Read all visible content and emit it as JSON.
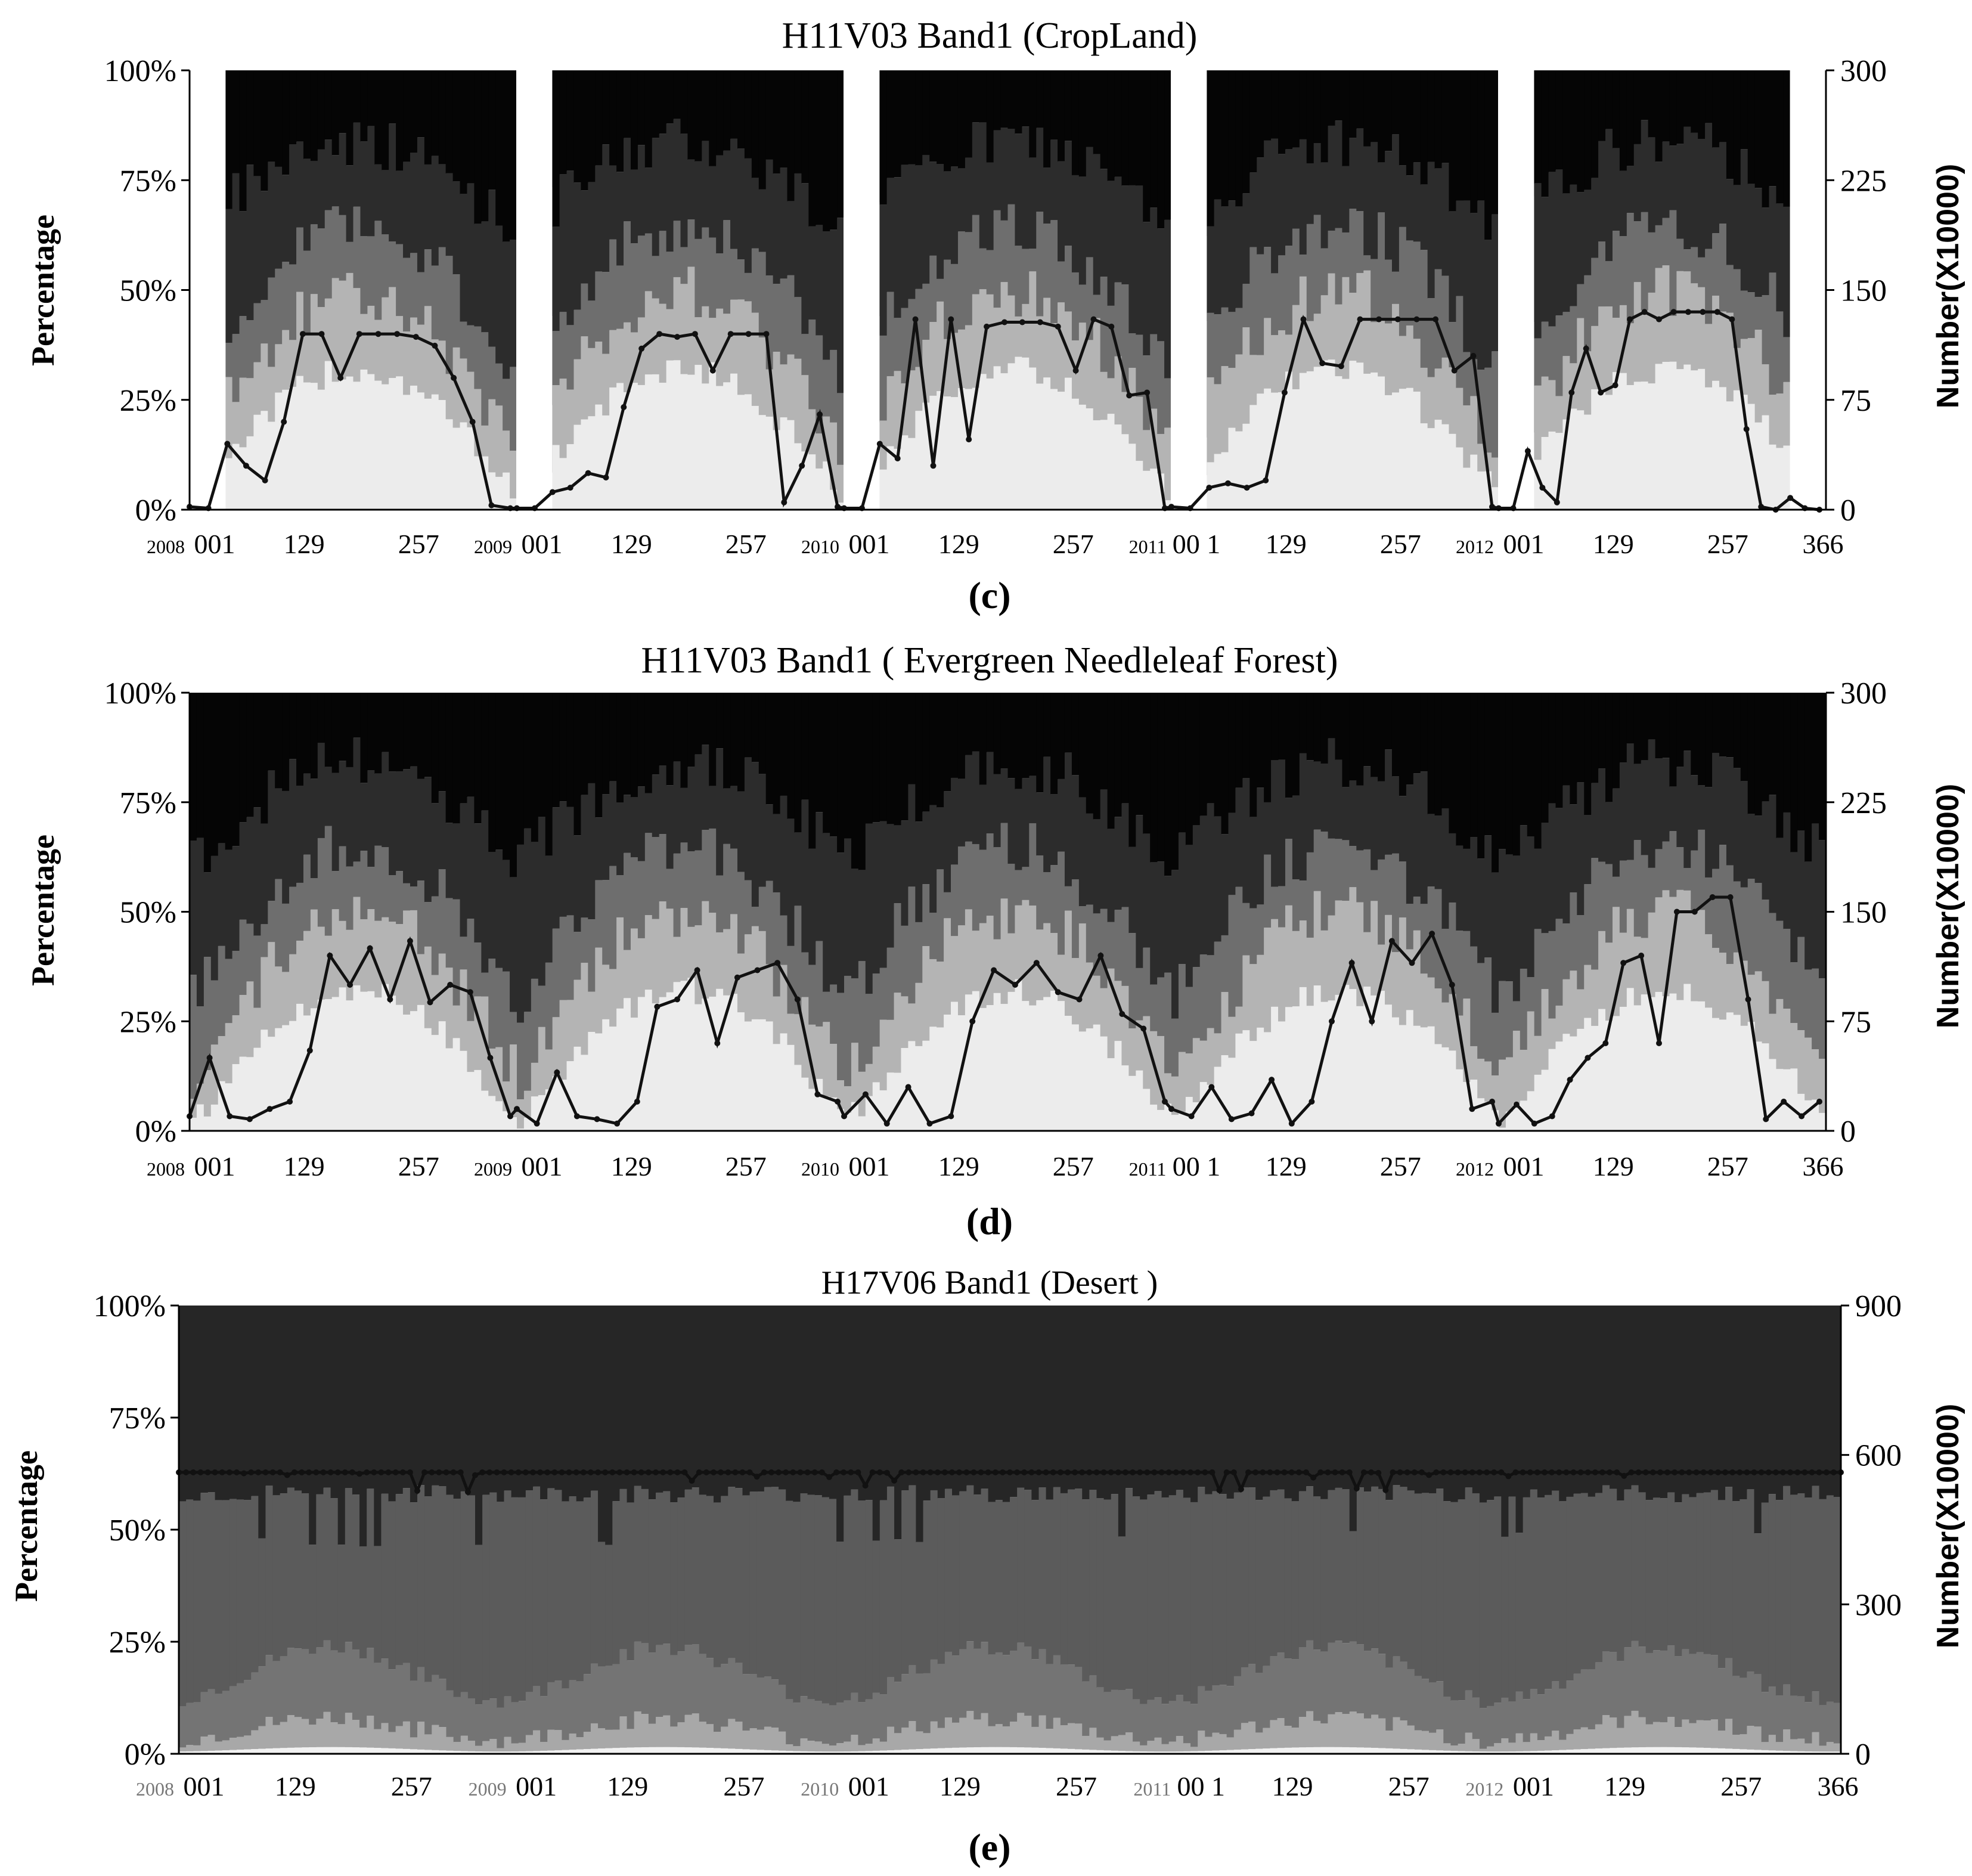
{
  "chart_data": [
    {
      "id": "c",
      "type": "area",
      "title": "H11V03 Band1 (CropLand)",
      "caption": "(c)",
      "ylabel": "Percentage",
      "y2label": "Number(X10000)",
      "yticks": [
        "0%",
        "25%",
        "50%",
        "75%",
        "100%"
      ],
      "y2ticks": [
        "0",
        "75",
        "150",
        "225",
        "300"
      ],
      "ylim": [
        0,
        100
      ],
      "y2lim": [
        0,
        300
      ],
      "years": [
        "2008",
        "2009",
        "2010",
        "2011",
        "2012"
      ],
      "day_ticks": [
        "001",
        "129",
        "257"
      ],
      "year_day_labels": [
        "001",
        "001",
        "001",
        "00 1",
        "001"
      ],
      "end_tick": "366",
      "layers": 5,
      "layer_colors": [
        "#ececec",
        "#b4b4b4",
        "#6e6e6e",
        "#2c2c2c",
        "#050505"
      ],
      "has_gaps": true,
      "series": [
        {
          "kind": "number",
          "x": [
            0,
            16,
            32,
            48,
            64,
            80,
            96,
            112,
            128,
            144,
            160,
            176,
            192,
            208,
            224,
            240,
            256,
            272,
            288,
            304,
            320,
            336,
            352,
            365
          ],
          "values": [
            [
              2,
              1,
              45,
              30,
              20,
              60,
              120,
              120,
              90,
              120,
              120,
              120,
              118,
              112,
              90,
              60,
              3,
              1
            ],
            [
              1,
              1,
              12,
              15,
              25,
              22,
              70,
              110,
              120,
              118,
              120,
              95,
              120,
              120,
              120,
              5,
              30,
              65,
              2
            ],
            [
              1,
              1,
              45,
              35,
              130,
              30,
              130,
              48,
              125,
              128,
              128,
              128,
              125,
              95,
              130,
              125,
              78,
              80,
              1
            ],
            [
              2,
              1,
              15,
              18,
              15,
              20,
              80,
              130,
              100,
              98,
              130,
              130,
              130,
              130,
              130,
              95,
              105,
              2
            ],
            [
              1,
              1,
              40,
              15,
              5,
              80,
              110,
              80,
              85,
              130,
              135,
              130,
              135,
              135,
              135,
              135,
              130,
              55,
              2,
              0,
              8,
              1,
              0
            ]
          ]
        }
      ]
    },
    {
      "id": "d",
      "type": "area",
      "title": "H11V03 Band1 ( Evergreen Needleleaf Forest)",
      "caption": "(d)",
      "ylabel": "Percentage",
      "y2label": "Number(X10000)",
      "yticks": [
        "0%",
        "25%",
        "50%",
        "75%",
        "100%"
      ],
      "y2ticks": [
        "0",
        "75",
        "150",
        "225",
        "300"
      ],
      "ylim": [
        0,
        100
      ],
      "y2lim": [
        0,
        300
      ],
      "years": [
        "2008",
        "2009",
        "2010",
        "2011",
        "2012"
      ],
      "day_ticks": [
        "001",
        "129",
        "257"
      ],
      "year_day_labels": [
        "001",
        "001",
        "001",
        "00 1",
        "001"
      ],
      "end_tick": "366",
      "layers": 5,
      "layer_colors": [
        "#ececec",
        "#b4b4b4",
        "#6e6e6e",
        "#2c2c2c",
        "#050505"
      ],
      "has_gaps": false,
      "series": [
        {
          "kind": "number",
          "values": [
            [
              10,
              50,
              10,
              8,
              15,
              20,
              55,
              120,
              100,
              125,
              90,
              130,
              88,
              100,
              95,
              50,
              10
            ],
            [
              15,
              5,
              40,
              10,
              8,
              5,
              20,
              85,
              90,
              110,
              60,
              105,
              110,
              115,
              90,
              25,
              20
            ],
            [
              10,
              25,
              5,
              30,
              5,
              10,
              75,
              110,
              100,
              115,
              95,
              90,
              120,
              80,
              70,
              20
            ],
            [
              15,
              10,
              30,
              8,
              12,
              35,
              5,
              20,
              75,
              115,
              75,
              130,
              115,
              135,
              100,
              15,
              20
            ],
            [
              5,
              18,
              5,
              10,
              35,
              50,
              60,
              115,
              120,
              60,
              150,
              150,
              160,
              160,
              90,
              8,
              20,
              10,
              20
            ]
          ]
        }
      ]
    },
    {
      "id": "e",
      "type": "area",
      "title": "H17V06 Band1 (Desert )",
      "caption": "(e)",
      "ylabel": "Percentage",
      "y2label": "Number(X10000)",
      "yticks": [
        "0%",
        "25%",
        "50%",
        "75%",
        "100%"
      ],
      "y2ticks": [
        "0",
        "300",
        "600",
        "900"
      ],
      "ylim": [
        0,
        100
      ],
      "y2lim": [
        0,
        900
      ],
      "years": [
        "2008",
        "2009",
        "2010",
        "2011",
        "2012"
      ],
      "day_ticks": [
        "001",
        "129",
        "257"
      ],
      "year_day_labels": [
        "001",
        "001",
        "001",
        "00 1",
        "001"
      ],
      "end_tick": "366",
      "layers": 5,
      "layer_colors": [
        "#f2f2f2",
        "#a8a8a8",
        "#747474",
        "#5b5b5b",
        "#262626"
      ],
      "has_gaps": false,
      "series": [
        {
          "kind": "number",
          "approx_value": 565
        }
      ]
    }
  ]
}
